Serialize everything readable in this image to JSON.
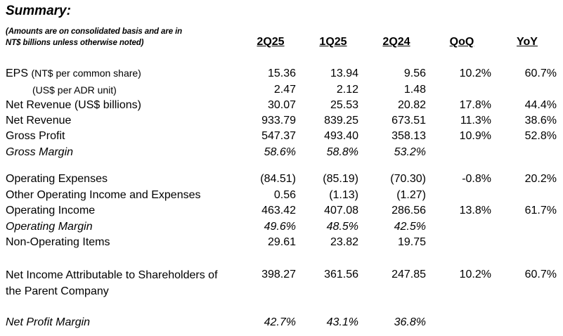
{
  "title": "Summary:",
  "note_line1": "(Amounts are on consolidated basis and are in",
  "note_line2": "NT$ billions unless otherwise noted)",
  "columns": [
    "2Q25",
    "1Q25",
    "2Q24",
    "QoQ",
    "YoY"
  ],
  "rows": [
    {
      "label": "EPS",
      "label_small": "(NT$ per common share)",
      "values": [
        "15.36",
        "13.94",
        "9.56",
        "10.2%",
        "60.7%"
      ]
    },
    {
      "label": "(US$ per ADR unit)",
      "values": [
        "2.47",
        "2.12",
        "1.48",
        "",
        ""
      ]
    },
    {
      "label": "Net Revenue (US$ billions)",
      "values": [
        "30.07",
        "25.53",
        "20.82",
        "17.8%",
        "44.4%"
      ]
    },
    {
      "label": "Net Revenue",
      "values": [
        "933.79",
        "839.25",
        "673.51",
        "11.3%",
        "38.6%"
      ]
    },
    {
      "label": "Gross Profit",
      "values": [
        "547.37",
        "493.40",
        "358.13",
        "10.9%",
        "52.8%"
      ]
    },
    {
      "label": "Gross Margin",
      "values": [
        "58.6%",
        "58.8%",
        "53.2%",
        "",
        ""
      ]
    },
    {
      "label": "Operating Expenses",
      "values": [
        "(84.51)",
        "(85.19)",
        "(70.30)",
        "-0.8%",
        "20.2%"
      ]
    },
    {
      "label": "Other Operating Income and Expenses",
      "values": [
        "0.56",
        "(1.13)",
        "(1.27)",
        "",
        ""
      ]
    },
    {
      "label": "Operating Income",
      "values": [
        "463.42",
        "407.08",
        "286.56",
        "13.8%",
        "61.7%"
      ]
    },
    {
      "label": "Operating Margin",
      "values": [
        "49.6%",
        "48.5%",
        "42.5%",
        "",
        ""
      ]
    },
    {
      "label": "Non-Operating Items",
      "values": [
        "29.61",
        "23.82",
        "19.75",
        "",
        ""
      ]
    },
    {
      "label_line1": "Net Income Attributable to Shareholders of",
      "label_line2": "the Parent Company",
      "values": [
        "398.27",
        "361.56",
        "247.85",
        "10.2%",
        "60.7%"
      ]
    },
    {
      "label": "Net Profit Margin",
      "values": [
        "42.7%",
        "43.1%",
        "36.8%",
        "",
        ""
      ]
    }
  ]
}
